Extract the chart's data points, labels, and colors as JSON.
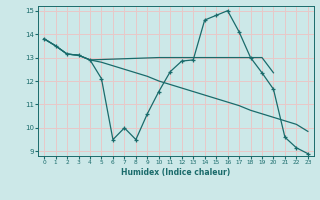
{
  "xlabel": "Humidex (Indice chaleur)",
  "ylabel": "",
  "xlim": [
    -0.5,
    23.5
  ],
  "ylim": [
    8.8,
    15.2
  ],
  "yticks": [
    9,
    10,
    11,
    12,
    13,
    14,
    15
  ],
  "xticks": [
    0,
    1,
    2,
    3,
    4,
    5,
    6,
    7,
    8,
    9,
    10,
    11,
    12,
    13,
    14,
    15,
    16,
    17,
    18,
    19,
    20,
    21,
    22,
    23
  ],
  "bg_color": "#cce8e8",
  "grid_color": "#e8c8c8",
  "line_color": "#1a6b6b",
  "line1_x": [
    0,
    1,
    2,
    3,
    4,
    5,
    6,
    7,
    8,
    9,
    10,
    11,
    12,
    13,
    14,
    15,
    16,
    17,
    18,
    19,
    20,
    21,
    22,
    23
  ],
  "line1_y": [
    13.8,
    13.5,
    13.15,
    13.1,
    12.9,
    12.8,
    12.65,
    12.5,
    12.35,
    12.2,
    12.0,
    11.85,
    11.7,
    11.55,
    11.4,
    11.25,
    11.1,
    10.95,
    10.75,
    10.6,
    10.45,
    10.3,
    10.15,
    9.85
  ],
  "line2_x": [
    0,
    1,
    2,
    3,
    4,
    5,
    6,
    7,
    8,
    9,
    10,
    11,
    12,
    13,
    14,
    15,
    16,
    17,
    18,
    19,
    20,
    21,
    22,
    23
  ],
  "line2_y": [
    13.8,
    13.5,
    13.15,
    13.1,
    12.9,
    12.1,
    9.5,
    10.0,
    9.5,
    10.6,
    11.55,
    12.4,
    12.85,
    12.9,
    14.6,
    14.8,
    15.0,
    14.1,
    13.0,
    12.35,
    11.65,
    9.6,
    9.15,
    8.9
  ],
  "line3_x": [
    0,
    1,
    2,
    3,
    4,
    10,
    11,
    12,
    13,
    14,
    15,
    16,
    17,
    18,
    19,
    20
  ],
  "line3_y": [
    13.8,
    13.5,
    13.15,
    13.1,
    12.9,
    13.0,
    13.0,
    13.0,
    13.0,
    13.0,
    13.0,
    13.0,
    13.0,
    13.0,
    13.0,
    12.35
  ]
}
